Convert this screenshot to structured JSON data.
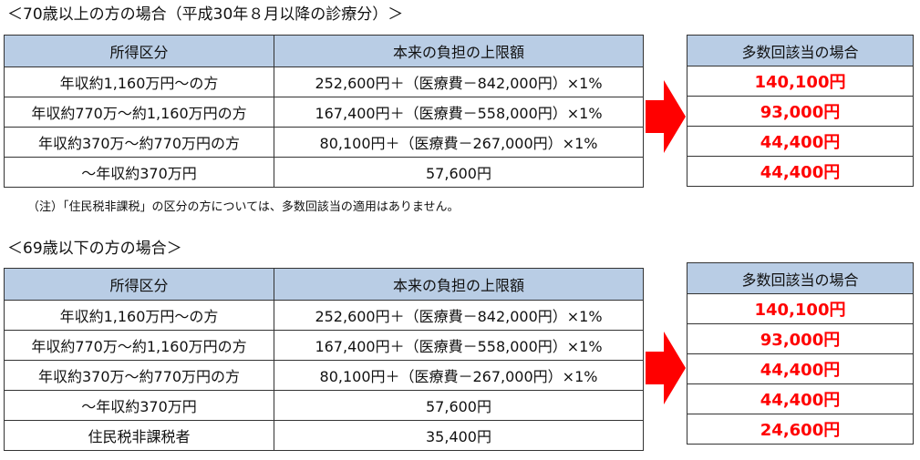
{
  "section1": {
    "title": "＜70歳以上の方の場合（平成30年８月以降の診療分）＞",
    "headers": [
      "所得区分",
      "本来の負担の上限額"
    ],
    "rows": [
      [
        "年収約1,160万円～の方",
        "252,600円＋（医療費－842,000円）×1%"
      ],
      [
        "年収約770万～約1,160万円の方",
        "167,400円＋（医療費－558,000円）×1%"
      ],
      [
        "年収約370万～約770万円の方",
        "80,100円＋（医療費－267,000円）×1%"
      ],
      [
        "～年収約370万円",
        "57,600円"
      ]
    ],
    "right_header": "多数回該当の場合",
    "right_values": [
      "140,100円",
      "93,000円",
      "44,400円",
      "44,400円"
    ],
    "note": "（注）「住民税非課税」の区分の方については、多数回該当の適用はありません。"
  },
  "section2": {
    "title": "＜69歳以下の方の場合＞",
    "headers": [
      "所得区分",
      "本来の負担の上限額"
    ],
    "rows": [
      [
        "年収約1,160万円～の方",
        "252,600円＋（医療費－842,000円）×1%"
      ],
      [
        "年収約770万～約1,160万円の方",
        "167,400円＋（医療費－558,000円）×1%"
      ],
      [
        "年収約370万～約770万円の方",
        "80,100円＋（医療費－267,000円）×1%"
      ],
      [
        "～年収約370万円",
        "57,600円"
      ],
      [
        "住民税非課税者",
        "35,400円"
      ]
    ],
    "right_header": "多数回該当の場合",
    "right_values": [
      "140,100円",
      "93,000円",
      "44,400円",
      "44,400円",
      "24,600円"
    ]
  },
  "colors": {
    "header_bg": "#b9cde5",
    "accent_red": "#ff0000"
  },
  "icons": {
    "arrow": "right-arrow-icon"
  }
}
